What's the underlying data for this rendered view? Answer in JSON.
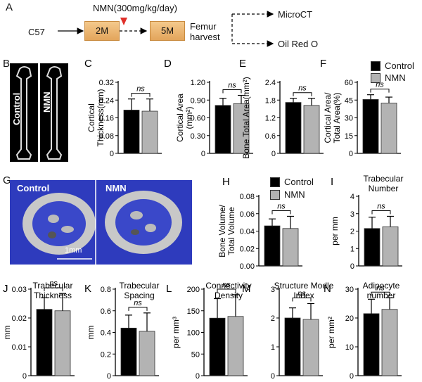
{
  "schematic": {
    "panel_letter": "A",
    "strain": "C57",
    "treatment": "NMN(300mg/kg/day)",
    "start_age": "2M",
    "end_age": "5M",
    "step": "Femur\nharvest",
    "outputs": [
      "MicroCT",
      "Oil Red O"
    ]
  },
  "images": {
    "femur_panel": {
      "letter": "B",
      "labels": [
        "Control",
        "NMN"
      ]
    },
    "microct_panel": {
      "letter": "G",
      "labels": [
        "Control",
        "NMN"
      ],
      "scale_bar": "1mm"
    }
  },
  "legend": {
    "entries": [
      {
        "name": "Control",
        "color": "#000000"
      },
      {
        "name": "NMN",
        "color": "#b3b3b3"
      }
    ]
  },
  "colors": {
    "control": "#000000",
    "nmn": "#b3b3b3"
  },
  "chart_data": [
    {
      "panel": "C",
      "type": "bar",
      "title": "",
      "ylabel": "Cortical\nThickness(mm)",
      "ylim": [
        0,
        0.32
      ],
      "yticks": [
        "0",
        "0.08",
        "0.16",
        "0.24",
        "0.32"
      ],
      "categories": [
        "Control",
        "NMN"
      ],
      "values": [
        0.195,
        0.19
      ],
      "errors": [
        0.05,
        0.055
      ],
      "annotation": "ns"
    },
    {
      "panel": "D",
      "type": "bar",
      "title": "",
      "ylabel": "Cortical Area\n(mm²)",
      "ylim": [
        0,
        1.2
      ],
      "yticks": [
        "0",
        "0.30",
        "0.60",
        "0.90",
        "1.20"
      ],
      "categories": [
        "Control",
        "NMN"
      ],
      "values": [
        0.81,
        0.84
      ],
      "errors": [
        0.12,
        0.14
      ],
      "annotation": "ns"
    },
    {
      "panel": "E",
      "type": "bar",
      "title": "",
      "ylabel": "Bone Total Area(mm²)",
      "ylim": [
        0,
        2.4
      ],
      "yticks": [
        "0",
        "0.6",
        "1.2",
        "1.8",
        "2.4"
      ],
      "categories": [
        "Control",
        "NMN"
      ],
      "values": [
        1.72,
        1.62
      ],
      "errors": [
        0.14,
        0.24
      ],
      "annotation": "ns"
    },
    {
      "panel": "F",
      "type": "bar",
      "title": "",
      "ylabel": "Cortical Area/\nTotal Area(%)",
      "ylim": [
        0,
        60
      ],
      "yticks": [
        "0",
        "15",
        "30",
        "45",
        "60"
      ],
      "categories": [
        "Control",
        "NMN"
      ],
      "values": [
        45.5,
        42.5
      ],
      "errors": [
        4,
        5
      ],
      "annotation": "ns"
    },
    {
      "panel": "H",
      "type": "bar",
      "title": "",
      "ylabel": "Bone Volume/\nTotal Volume",
      "ylim": [
        0,
        0.08
      ],
      "yticks": [
        "0.00",
        "0.02",
        "0.04",
        "0.06",
        "0.08"
      ],
      "categories": [
        "Control",
        "NMN"
      ],
      "values": [
        0.046,
        0.043
      ],
      "errors": [
        0.008,
        0.014
      ],
      "annotation": "ns"
    },
    {
      "panel": "I",
      "type": "bar",
      "title": "Trabecular\nNumber",
      "ylabel": "per mm",
      "ylim": [
        0,
        4
      ],
      "yticks": [
        "0",
        "1",
        "2",
        "3",
        "4"
      ],
      "categories": [
        "Control",
        "NMN"
      ],
      "values": [
        2.15,
        2.25
      ],
      "errors": [
        0.65,
        0.6
      ],
      "annotation": "ns"
    },
    {
      "panel": "J",
      "type": "bar",
      "title": "Trabecular\nThickness",
      "ylabel": "mm",
      "ylim": [
        0,
        0.03
      ],
      "yticks": [
        "0",
        "0.01",
        "0.02",
        "0.03"
      ],
      "categories": [
        "Control",
        "NMN"
      ],
      "values": [
        0.023,
        0.0225
      ],
      "errors": [
        0.004,
        0.006
      ],
      "annotation": "ns"
    },
    {
      "panel": "K",
      "type": "bar",
      "title": "Trabecular\nSpacing",
      "ylabel": "mm",
      "ylim": [
        0,
        0.8
      ],
      "yticks": [
        "0",
        "0.2",
        "0.4",
        "0.6",
        "0.8"
      ],
      "categories": [
        "Control",
        "NMN"
      ],
      "values": [
        0.44,
        0.41
      ],
      "errors": [
        0.12,
        0.17
      ],
      "annotation": "ns"
    },
    {
      "panel": "L",
      "type": "bar",
      "title": "Connectivity\nDensity",
      "ylabel": "per mm³",
      "ylim": [
        0,
        200
      ],
      "yticks": [
        "0",
        "50",
        "100",
        "150",
        "200"
      ],
      "categories": [
        "Control",
        "NMN"
      ],
      "values": [
        133,
        137
      ],
      "errors": [
        45,
        50
      ],
      "annotation": "ns"
    },
    {
      "panel": "M",
      "type": "bar",
      "title": "Structure Modle\nIndex",
      "ylabel": "",
      "ylim": [
        0,
        3
      ],
      "yticks": [
        "0",
        "1",
        "2",
        "3"
      ],
      "categories": [
        "Control",
        "NMN"
      ],
      "values": [
        2.0,
        1.95
      ],
      "errors": [
        0.35,
        0.55
      ],
      "annotation": "ns"
    },
    {
      "panel": "N",
      "type": "bar",
      "title": "Adipocyte\nnumber",
      "ylabel": "per mm²",
      "ylim": [
        0,
        30
      ],
      "yticks": [
        "0",
        "10",
        "20",
        "30"
      ],
      "categories": [
        "Control",
        "NMN"
      ],
      "values": [
        21.5,
        23
      ],
      "errors": [
        5,
        4
      ],
      "annotation": "ns"
    }
  ]
}
